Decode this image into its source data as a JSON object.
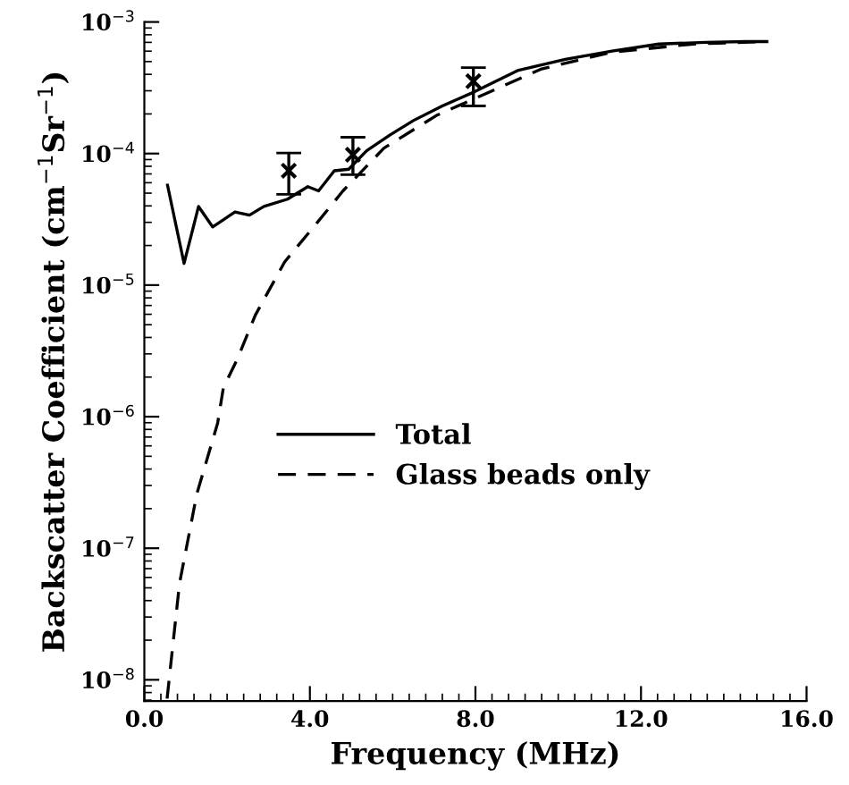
{
  "chart_data": {
    "type": "line",
    "xlabel": "Frequency (MHz)",
    "ylabel": "Backscatter Coefficient (cm$^{−1}$Sr$^{−1}$)",
    "log": "y",
    "xlim": [
      0,
      16
    ],
    "ylim": [
      6.9e-09,
      0.001
    ],
    "xticks": [
      {
        "value": 0,
        "label": "0.0"
      },
      {
        "value": 4,
        "label": "4.0"
      },
      {
        "value": 8,
        "label": "8.0"
      },
      {
        "value": 12,
        "label": "12.0"
      },
      {
        "value": 16,
        "label": "16.0"
      }
    ],
    "yticks": [
      {
        "value": 1e-08,
        "label": "10$^{−8}$"
      },
      {
        "value": 1e-07,
        "label": "10$^{−7}$"
      },
      {
        "value": 1e-06,
        "label": "10$^{−6}$"
      },
      {
        "value": 1e-05,
        "label": "10$^{−5}$"
      },
      {
        "value": 0.0001,
        "label": "10$^{−4}$"
      },
      {
        "value": 0.001,
        "label": "10$^{−3}$"
      }
    ],
    "grid": false,
    "legend": "center right",
    "series": [
      {
        "name": "Total",
        "color": "#000000",
        "line_style": "solid",
        "x": [
          0.56,
          0.96,
          1.31,
          1.65,
          2.19,
          2.54,
          2.89,
          3.46,
          3.95,
          4.21,
          4.59,
          4.94,
          5.37,
          5.93,
          6.5,
          7.2,
          7.98,
          9.04,
          10.17,
          11.3,
          12.43,
          13.56,
          14.53,
          15.04
        ],
        "values": [
          5.75e-05,
          1.46e-05,
          3.96e-05,
          2.77e-05,
          3.6e-05,
          3.4e-05,
          3.96e-05,
          4.5e-05,
          5.6e-05,
          5.2e-05,
          7.4e-05,
          7.6e-05,
          0.000105,
          0.000138,
          0.000178,
          0.00023,
          0.000295,
          0.00043,
          0.00052,
          0.0006,
          0.00068,
          0.0007,
          0.00071,
          0.00071
        ]
      },
      {
        "name": "Glass beads only",
        "color": "#000000",
        "line_style": "dashed",
        "x": [
          0.55,
          0.85,
          1.27,
          1.77,
          1.91,
          2.26,
          2.68,
          3.39,
          4.24,
          4.8,
          5.79,
          7.06,
          8.19,
          9.6,
          11.3,
          13.27,
          15.04
        ],
        "values": [
          7.2e-09,
          5.4e-08,
          2.6e-07,
          8.9e-07,
          1.66e-06,
          2.8e-06,
          5.9e-06,
          1.5e-05,
          3.16e-05,
          5.2e-05,
          0.00011,
          0.000195,
          0.00028,
          0.00044,
          0.00059,
          0.00068,
          0.00071
        ]
      },
      {
        "type": "scatter",
        "color": "#000000",
        "marker": "cross",
        "x": [
          3.49,
          5.04,
          7.95
        ],
        "values": [
          7.4e-05,
          9.8e-05,
          0.000355
        ],
        "errors": [
          [
            4.9e-05,
            0.000101
          ],
          [
            6.9e-05,
            0.000133
          ],
          [
            0.00023,
            0.00045
          ]
        ]
      }
    ]
  }
}
